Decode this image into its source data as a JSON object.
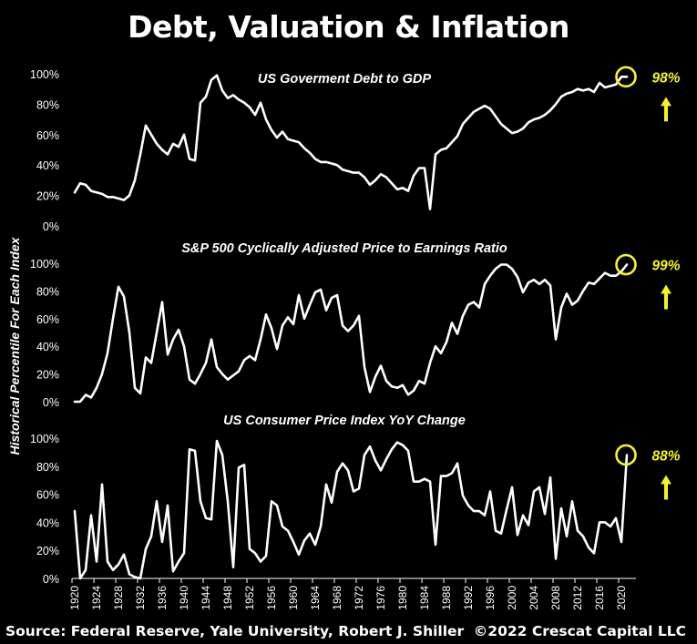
{
  "title": "Debt, Valuation & Inflation",
  "y_axis_label": "Historical Percentile For Each Index",
  "footer": {
    "source": "Source: Federal Reserve, Yale University, Robert J. Shiller",
    "copyright": "©2022 Crescat Capital LLC"
  },
  "colors": {
    "background": "#000000",
    "line": "#ffffff",
    "highlight": "#f5f51e"
  },
  "chart_data": [
    {
      "type": "line",
      "title": "US Goverment Debt to GDP",
      "xlabel": "",
      "ylabel": "Historical Percentile For Each Index",
      "ylim": [
        0,
        100
      ],
      "yticks": [
        "0%",
        "20%",
        "40%",
        "60%",
        "80%",
        "100%"
      ],
      "x_start": 1920,
      "annotation": {
        "label": "98%",
        "direction": "up"
      },
      "values": [
        22,
        28,
        27,
        23,
        22,
        21,
        19,
        19,
        18,
        17,
        20,
        30,
        47,
        66,
        60,
        54,
        50,
        47,
        54,
        52,
        60,
        44,
        43,
        81,
        85,
        96,
        99,
        89,
        84,
        86,
        83,
        81,
        78,
        73,
        81,
        70,
        63,
        58,
        62,
        57,
        56,
        55,
        51,
        48,
        44,
        42,
        42,
        41,
        40,
        37,
        36,
        35,
        35,
        32,
        27,
        30,
        34,
        32,
        28,
        24,
        25,
        23,
        33,
        38,
        38,
        11,
        47,
        50,
        51,
        55,
        59,
        67,
        71,
        75,
        77,
        79,
        77,
        72,
        67,
        64,
        61,
        62,
        64,
        68,
        70,
        71,
        73,
        76,
        80,
        85,
        87,
        88,
        90,
        89,
        90,
        88,
        94,
        91,
        92,
        93,
        98,
        98
      ]
    },
    {
      "type": "line",
      "title": "S&P 500 Cyclically Adjusted Price to Earnings Ratio",
      "ylim": [
        0,
        100
      ],
      "yticks": [
        "0%",
        "20%",
        "40%",
        "60%",
        "80%",
        "100%"
      ],
      "x_start": 1920,
      "annotation": {
        "label": "99%",
        "direction": "up"
      },
      "values": [
        0,
        0,
        5,
        3,
        10,
        20,
        35,
        60,
        83,
        76,
        50,
        10,
        6,
        32,
        28,
        50,
        72,
        34,
        45,
        52,
        40,
        16,
        13,
        20,
        28,
        45,
        25,
        20,
        16,
        19,
        22,
        30,
        33,
        30,
        45,
        63,
        53,
        38,
        55,
        61,
        56,
        77,
        60,
        70,
        79,
        81,
        66,
        75,
        77,
        55,
        51,
        55,
        62,
        25,
        7,
        18,
        26,
        15,
        11,
        10,
        12,
        5,
        8,
        15,
        13,
        28,
        40,
        35,
        43,
        57,
        49,
        62,
        70,
        72,
        68,
        85,
        91,
        96,
        99,
        99,
        96,
        90,
        79,
        86,
        88,
        85,
        88,
        84,
        45,
        68,
        78,
        70,
        73,
        80,
        86,
        85,
        89,
        93,
        91,
        91,
        94,
        99
      ]
    },
    {
      "type": "line",
      "title": "US Consumer Price Index YoY Change",
      "ylim": [
        0,
        100
      ],
      "yticks": [
        "0%",
        "20%",
        "40%",
        "60%",
        "80%",
        "100%"
      ],
      "x_start": 1920,
      "annotation": {
        "label": "88%",
        "direction": "up"
      },
      "values": [
        48,
        0,
        6,
        45,
        12,
        67,
        12,
        6,
        10,
        17,
        3,
        1,
        0,
        21,
        30,
        55,
        26,
        52,
        5,
        12,
        18,
        92,
        91,
        55,
        43,
        42,
        98,
        88,
        55,
        8,
        79,
        81,
        21,
        18,
        12,
        16,
        55,
        52,
        37,
        34,
        26,
        17,
        27,
        32,
        24,
        37,
        67,
        54,
        76,
        82,
        77,
        62,
        64,
        88,
        94,
        84,
        77,
        85,
        92,
        97,
        95,
        91,
        69,
        69,
        71,
        69,
        24,
        73,
        73,
        75,
        82,
        59,
        52,
        48,
        48,
        45,
        62,
        34,
        32,
        49,
        65,
        31,
        45,
        38,
        62,
        65,
        46,
        72,
        14,
        50,
        30,
        55,
        34,
        30,
        22,
        18,
        40,
        40,
        37,
        43,
        26,
        88
      ]
    }
  ],
  "x_tick_labels": [
    "1920",
    "1924",
    "1928",
    "1932",
    "1936",
    "1940",
    "1944",
    "1948",
    "1952",
    "1956",
    "1960",
    "1964",
    "1968",
    "1972",
    "1976",
    "1980",
    "1984",
    "1988",
    "1992",
    "1996",
    "2000",
    "2004",
    "2008",
    "2012",
    "2016",
    "2020"
  ]
}
